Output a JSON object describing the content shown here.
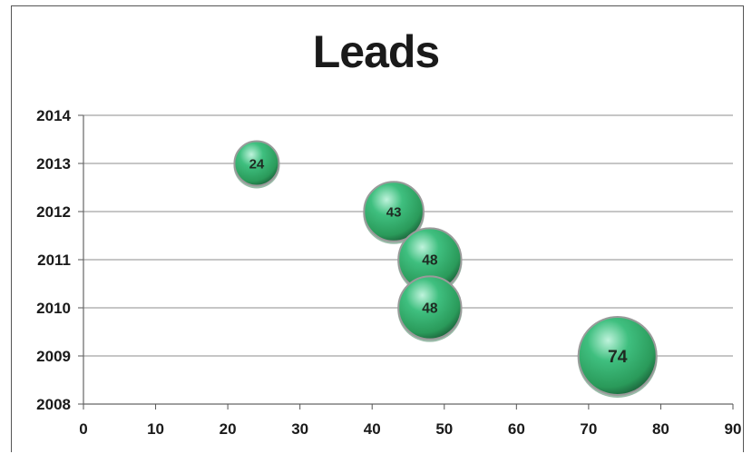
{
  "chart_data": {
    "type": "bubble",
    "title": "Leads",
    "xlabel": "",
    "ylabel": "",
    "xlim": [
      0,
      90
    ],
    "ylim": [
      2008,
      2014
    ],
    "xticks": [
      0,
      10,
      20,
      30,
      40,
      50,
      60,
      70,
      80,
      90
    ],
    "yticks": [
      2008,
      2009,
      2010,
      2011,
      2012,
      2013,
      2014
    ],
    "grid": true,
    "legend": "none",
    "points": [
      {
        "x": 24,
        "y": 2013,
        "size": 24,
        "label": "24"
      },
      {
        "x": 43,
        "y": 2012,
        "size": 43,
        "label": "43"
      },
      {
        "x": 48,
        "y": 2011,
        "size": 48,
        "label": "48"
      },
      {
        "x": 48,
        "y": 2010,
        "size": 48,
        "label": "48"
      },
      {
        "x": 74,
        "y": 2009,
        "size": 74,
        "label": "74"
      }
    ],
    "colors": {
      "bubble": "#2e9e5e",
      "bubble_highlight": "#9be3c6",
      "bubble_shadow": "#1f6b40"
    }
  }
}
